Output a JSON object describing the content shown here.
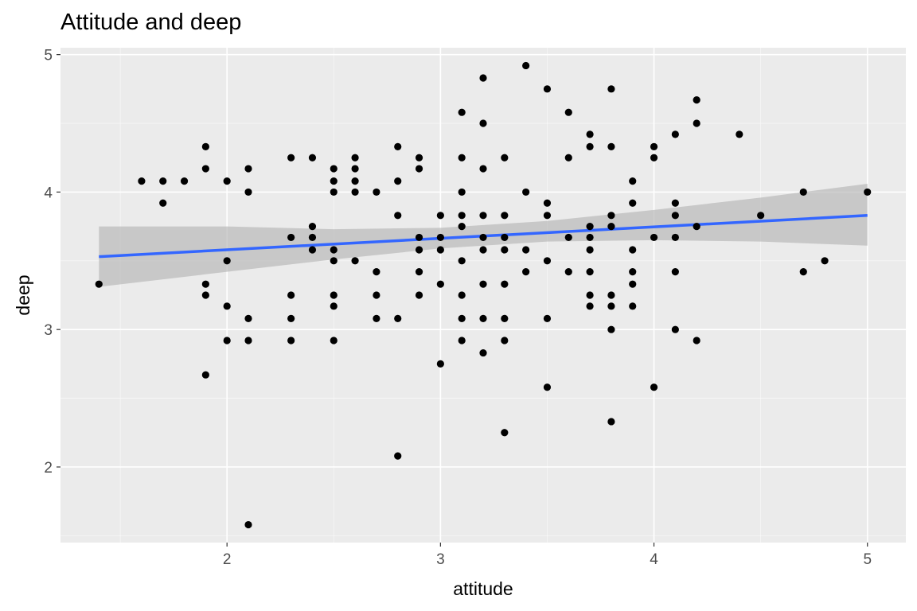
{
  "chart_data": {
    "type": "scatter",
    "title": "Attitude and deep",
    "xlabel": "attitude",
    "ylabel": "deep",
    "xlim": [
      1.22,
      5.18
    ],
    "ylim": [
      1.45,
      5.05
    ],
    "x_major_ticks": [
      2,
      3,
      4,
      5
    ],
    "x_minor_ticks": [
      1.5,
      2.5,
      3.5,
      4.5
    ],
    "y_major_ticks": [
      2,
      3,
      4,
      5
    ],
    "y_minor_ticks": [
      1.5,
      2.5,
      3.5,
      4.5
    ],
    "grid": true,
    "background_color": "#ebebeb",
    "grid_color": "#ffffff",
    "point_color": "#000000",
    "trend_color": "#3366ff",
    "band_color": "#b5b5b5",
    "points": [
      [
        1.4,
        3.33
      ],
      [
        1.6,
        4.08
      ],
      [
        1.7,
        4.08
      ],
      [
        1.7,
        3.92
      ],
      [
        1.8,
        4.08
      ],
      [
        1.9,
        4.33
      ],
      [
        1.9,
        4.17
      ],
      [
        1.9,
        3.33
      ],
      [
        1.9,
        3.25
      ],
      [
        1.9,
        2.67
      ],
      [
        2.0,
        4.08
      ],
      [
        2.0,
        3.5
      ],
      [
        2.0,
        3.17
      ],
      [
        2.0,
        2.92
      ],
      [
        2.1,
        4.17
      ],
      [
        2.1,
        4.0
      ],
      [
        2.1,
        3.08
      ],
      [
        2.1,
        2.92
      ],
      [
        2.1,
        1.58
      ],
      [
        2.3,
        4.25
      ],
      [
        2.3,
        3.67
      ],
      [
        2.3,
        3.25
      ],
      [
        2.3,
        3.08
      ],
      [
        2.3,
        2.92
      ],
      [
        2.4,
        4.25
      ],
      [
        2.4,
        3.75
      ],
      [
        2.4,
        3.67
      ],
      [
        2.4,
        3.58
      ],
      [
        2.5,
        4.17
      ],
      [
        2.5,
        4.08
      ],
      [
        2.5,
        4.0
      ],
      [
        2.5,
        3.58
      ],
      [
        2.5,
        3.5
      ],
      [
        2.5,
        3.25
      ],
      [
        2.5,
        3.17
      ],
      [
        2.5,
        2.92
      ],
      [
        2.6,
        4.25
      ],
      [
        2.6,
        4.17
      ],
      [
        2.6,
        4.08
      ],
      [
        2.6,
        4.0
      ],
      [
        2.6,
        3.5
      ],
      [
        2.7,
        4.0
      ],
      [
        2.7,
        3.42
      ],
      [
        2.7,
        3.25
      ],
      [
        2.7,
        3.08
      ],
      [
        2.8,
        4.33
      ],
      [
        2.8,
        4.08
      ],
      [
        2.8,
        3.83
      ],
      [
        2.8,
        3.08
      ],
      [
        2.8,
        2.08
      ],
      [
        2.9,
        4.25
      ],
      [
        2.9,
        4.17
      ],
      [
        2.9,
        3.67
      ],
      [
        2.9,
        3.58
      ],
      [
        2.9,
        3.42
      ],
      [
        2.9,
        3.25
      ],
      [
        3.0,
        3.83
      ],
      [
        3.0,
        3.67
      ],
      [
        3.0,
        3.58
      ],
      [
        3.0,
        3.33
      ],
      [
        3.0,
        2.75
      ],
      [
        3.1,
        4.58
      ],
      [
        3.1,
        4.25
      ],
      [
        3.1,
        4.0
      ],
      [
        3.1,
        3.83
      ],
      [
        3.1,
        3.75
      ],
      [
        3.1,
        3.5
      ],
      [
        3.1,
        3.25
      ],
      [
        3.1,
        3.08
      ],
      [
        3.1,
        2.92
      ],
      [
        3.2,
        4.83
      ],
      [
        3.2,
        4.5
      ],
      [
        3.2,
        4.17
      ],
      [
        3.2,
        3.83
      ],
      [
        3.2,
        3.67
      ],
      [
        3.2,
        3.58
      ],
      [
        3.2,
        3.33
      ],
      [
        3.2,
        3.08
      ],
      [
        3.2,
        2.83
      ],
      [
        3.3,
        4.25
      ],
      [
        3.3,
        3.83
      ],
      [
        3.3,
        3.67
      ],
      [
        3.3,
        3.58
      ],
      [
        3.3,
        3.33
      ],
      [
        3.3,
        3.08
      ],
      [
        3.3,
        2.92
      ],
      [
        3.3,
        2.25
      ],
      [
        3.4,
        4.92
      ],
      [
        3.4,
        4.0
      ],
      [
        3.4,
        3.58
      ],
      [
        3.4,
        3.42
      ],
      [
        3.5,
        4.75
      ],
      [
        3.5,
        3.92
      ],
      [
        3.5,
        3.83
      ],
      [
        3.5,
        3.5
      ],
      [
        3.5,
        3.08
      ],
      [
        3.5,
        2.58
      ],
      [
        3.6,
        4.58
      ],
      [
        3.6,
        4.25
      ],
      [
        3.6,
        3.67
      ],
      [
        3.6,
        3.42
      ],
      [
        3.7,
        4.42
      ],
      [
        3.7,
        4.33
      ],
      [
        3.7,
        3.75
      ],
      [
        3.7,
        3.67
      ],
      [
        3.7,
        3.58
      ],
      [
        3.7,
        3.42
      ],
      [
        3.7,
        3.25
      ],
      [
        3.7,
        3.17
      ],
      [
        3.8,
        4.75
      ],
      [
        3.8,
        4.33
      ],
      [
        3.8,
        3.83
      ],
      [
        3.8,
        3.75
      ],
      [
        3.8,
        3.25
      ],
      [
        3.8,
        3.17
      ],
      [
        3.8,
        3.0
      ],
      [
        3.8,
        2.33
      ],
      [
        3.9,
        4.08
      ],
      [
        3.9,
        3.92
      ],
      [
        3.9,
        3.58
      ],
      [
        3.9,
        3.42
      ],
      [
        3.9,
        3.33
      ],
      [
        3.9,
        3.17
      ],
      [
        4.0,
        4.33
      ],
      [
        4.0,
        4.25
      ],
      [
        4.0,
        3.67
      ],
      [
        4.0,
        2.58
      ],
      [
        4.1,
        4.42
      ],
      [
        4.1,
        3.92
      ],
      [
        4.1,
        3.83
      ],
      [
        4.1,
        3.67
      ],
      [
        4.1,
        3.42
      ],
      [
        4.1,
        3.0
      ],
      [
        4.2,
        4.67
      ],
      [
        4.2,
        4.5
      ],
      [
        4.2,
        3.75
      ],
      [
        4.2,
        2.92
      ],
      [
        4.4,
        4.42
      ],
      [
        4.5,
        3.83
      ],
      [
        4.7,
        4.0
      ],
      [
        4.7,
        3.42
      ],
      [
        4.8,
        3.5
      ],
      [
        5.0,
        4.0
      ]
    ],
    "trend_line": {
      "x": [
        1.4,
        5.0
      ],
      "y": [
        3.53,
        3.83
      ]
    },
    "confidence_band": {
      "x": [
        1.4,
        2.0,
        2.5,
        3.0,
        3.5,
        4.0,
        4.5,
        5.0
      ],
      "lower": [
        3.31,
        3.42,
        3.51,
        3.59,
        3.64,
        3.65,
        3.64,
        3.61
      ],
      "upper": [
        3.75,
        3.75,
        3.73,
        3.74,
        3.79,
        3.87,
        3.96,
        4.06
      ]
    }
  }
}
